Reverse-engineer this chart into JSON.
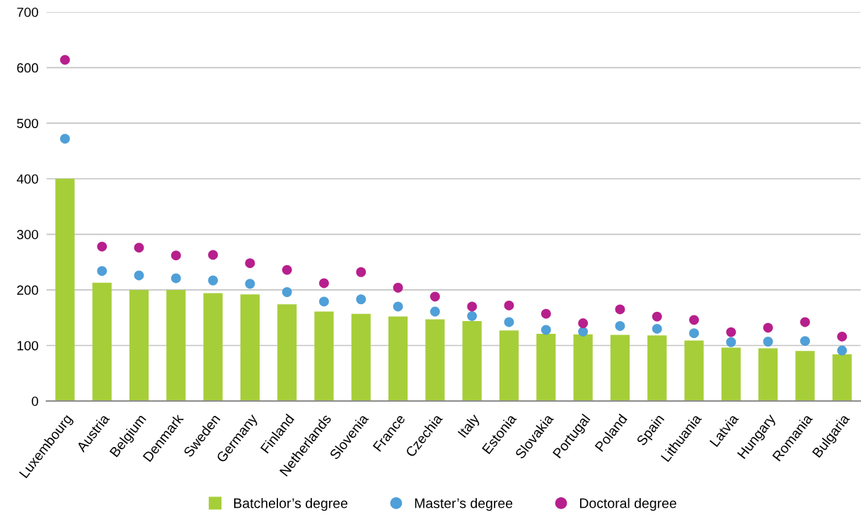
{
  "chart_data": {
    "type": "bar",
    "categories": [
      "Luxembourg",
      "Austria",
      "Belgium",
      "Denmark",
      "Sweden",
      "Germany",
      "Finland",
      "Netherlands",
      "Slovenia",
      "France",
      "Czechia",
      "Italy",
      "Estonia",
      "Slovakia",
      "Portugal",
      "Poland",
      "Spain",
      "Lithuania",
      "Latvia",
      "Hungary",
      "Romania",
      "Bulgaria"
    ],
    "series": [
      {
        "name": "Batchelor’s degree",
        "color": "#a6ce39",
        "values": [
          400,
          213,
          200,
          200,
          194,
          192,
          174,
          161,
          157,
          152,
          147,
          144,
          127,
          121,
          120,
          119,
          118,
          109,
          96,
          95,
          90,
          84
        ]
      },
      {
        "name": "Master’s degree",
        "type": "scatter",
        "color": "#4f9fd8",
        "values": [
          472,
          234,
          226,
          221,
          217,
          211,
          196,
          179,
          183,
          170,
          161,
          153,
          142,
          128,
          125,
          135,
          130,
          122,
          106,
          107,
          108,
          91
        ]
      },
      {
        "name": "Doctoral degree",
        "type": "scatter",
        "color": "#b71f8c",
        "values": [
          614,
          278,
          276,
          262,
          263,
          248,
          236,
          212,
          232,
          204,
          188,
          170,
          172,
          157,
          140,
          165,
          152,
          146,
          124,
          132,
          142,
          116
        ]
      }
    ],
    "ylim": [
      0,
      700
    ],
    "yticks": [
      0,
      100,
      200,
      300,
      400,
      500,
      600,
      700
    ],
    "grid": "y",
    "legend": "bottom",
    "marker": "circle"
  }
}
